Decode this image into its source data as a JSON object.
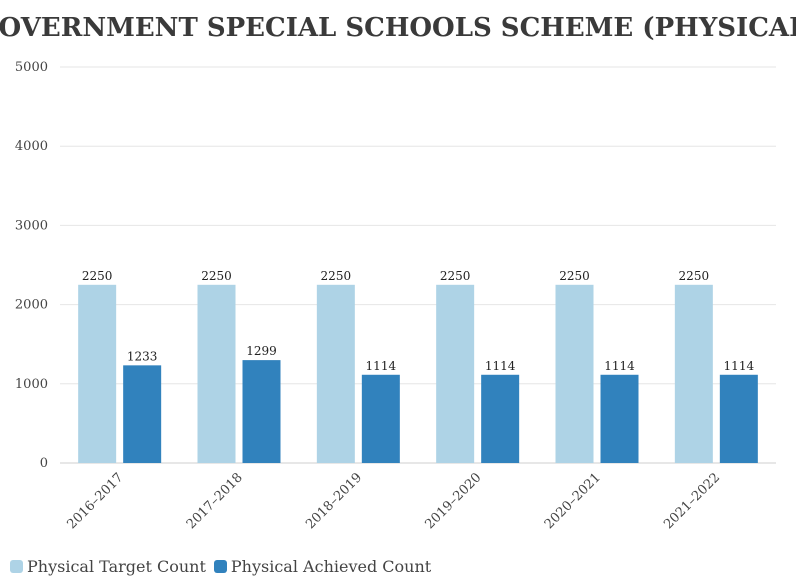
{
  "chart_data": {
    "type": "bar",
    "title": "GOVERNMENT SPECIAL SCHOOLS SCHEME (PHYSICAL)",
    "categories": [
      "2016–2017",
      "2017–2018",
      "2018–2019",
      "2019–2020",
      "2020–2021",
      "2021–2022"
    ],
    "series": [
      {
        "name": "Physical Target Count",
        "color": "#aed3e6",
        "values": [
          2250,
          2250,
          2250,
          2250,
          2250,
          2250
        ]
      },
      {
        "name": "Physical Achieved Count",
        "color": "#3182bd",
        "values": [
          1233,
          1299,
          1114,
          1114,
          1114,
          1114
        ]
      }
    ],
    "ylim": [
      0,
      5000
    ],
    "yticks": [
      0,
      1000,
      2000,
      3000,
      4000,
      5000
    ],
    "xlabel": "",
    "ylabel": "",
    "grid": true,
    "legend": "bottom-left"
  }
}
